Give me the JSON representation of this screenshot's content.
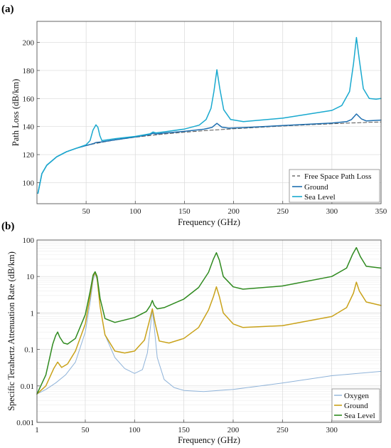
{
  "chart_data": [
    {
      "panel_label": "(a)",
      "type": "line",
      "xlabel": "Frequency (GHz)",
      "ylabel": "Path Loss (dB/km)",
      "xlim": [
        0,
        350
      ],
      "ylim": [
        85,
        215
      ],
      "x_scale": "linear",
      "y_scale": "linear",
      "xticks": [
        50,
        100,
        150,
        200,
        250,
        300,
        350
      ],
      "xtick_labels": [
        "50",
        "100",
        "150",
        "200",
        "250",
        "300",
        "350"
      ],
      "yticks": [
        100,
        120,
        140,
        160,
        180,
        200
      ],
      "ytick_labels": [
        "100",
        "120",
        "140",
        "160",
        "180",
        "200"
      ],
      "grid": true,
      "legend_position": "bottom-right",
      "series": [
        {
          "name": "Free Space Path Loss",
          "color": "#555555",
          "style": "dashed",
          "x": [
            1,
            5,
            10,
            20,
            30,
            40,
            50,
            60,
            80,
            100,
            125,
            150,
            175,
            200,
            225,
            250,
            275,
            300,
            325,
            350
          ],
          "y": [
            92.4,
            106.4,
            112.4,
            118.4,
            122.0,
            124.5,
            126.4,
            128.0,
            130.5,
            132.4,
            134.4,
            136.0,
            137.3,
            138.4,
            139.4,
            140.4,
            141.2,
            142.0,
            142.7,
            143.3
          ]
        },
        {
          "name": "Ground",
          "color": "#1f6fb0",
          "style": "solid",
          "x": [
            1,
            5,
            10,
            20,
            30,
            40,
            50,
            55,
            58,
            60,
            62,
            65,
            70,
            80,
            100,
            115,
            118,
            121,
            130,
            150,
            170,
            178,
            183,
            188,
            195,
            210,
            250,
            300,
            315,
            320,
            325,
            330,
            335,
            350
          ],
          "y": [
            92.4,
            106.4,
            112.4,
            118.4,
            122.0,
            124.5,
            126.5,
            127.4,
            128.0,
            128.6,
            128.8,
            129.0,
            129.5,
            130.6,
            132.6,
            134.3,
            135.2,
            134.7,
            135.4,
            136.6,
            138.1,
            139.4,
            142.3,
            139.6,
            138.9,
            139.3,
            140.7,
            142.5,
            143.5,
            145.0,
            149.0,
            145.5,
            144.0,
            144.6
          ]
        },
        {
          "name": "Sea Level",
          "color": "#19a9cf",
          "style": "solid",
          "x": [
            1,
            5,
            10,
            20,
            30,
            40,
            50,
            54,
            57,
            60,
            62,
            64,
            66,
            70,
            80,
            100,
            115,
            118,
            121,
            130,
            150,
            165,
            172,
            177,
            180,
            183,
            186,
            190,
            197,
            210,
            250,
            300,
            310,
            318,
            322,
            325,
            328,
            332,
            338,
            345,
            350
          ],
          "y": [
            92.4,
            106.4,
            112.4,
            118.4,
            122.0,
            124.5,
            127.0,
            130.0,
            137.5,
            141.2,
            139.5,
            133.5,
            130.0,
            130.4,
            131.4,
            133.0,
            134.8,
            136.1,
            135.5,
            136.3,
            138.2,
            141.0,
            145.0,
            153.0,
            165.0,
            180.5,
            167.0,
            152.0,
            145.0,
            143.5,
            146.0,
            151.5,
            155.0,
            165.0,
            185.0,
            203.5,
            187.0,
            167.0,
            160.0,
            159.5,
            160.0
          ]
        }
      ]
    },
    {
      "panel_label": "(b)",
      "type": "line",
      "xlabel": "Frequency (GHz)",
      "ylabel": "Specific Terahertz Attenuation Rate (dB/km)",
      "xlim": [
        1,
        350
      ],
      "ylim": [
        0.001,
        100
      ],
      "x_scale": "linear",
      "y_scale": "log",
      "xticks": [
        1,
        50,
        100,
        150,
        200,
        250,
        300
      ],
      "xtick_labels": [
        "1",
        "50",
        "100",
        "150",
        "200",
        "250",
        "300"
      ],
      "yticks": [
        0.001,
        0.01,
        0.1,
        1,
        10,
        100
      ],
      "ytick_labels": [
        "0.001",
        "0.01",
        "0.1",
        "1",
        "10",
        "100"
      ],
      "grid": true,
      "legend_position": "bottom-right",
      "series": [
        {
          "name": "Oxygen",
          "color": "#8fb3d9",
          "style": "solid",
          "x": [
            1,
            10,
            20,
            30,
            40,
            50,
            55,
            58,
            60,
            62,
            65,
            70,
            80,
            90,
            100,
            108,
            113,
            116,
            118,
            120,
            123,
            130,
            140,
            150,
            170,
            200,
            250,
            300,
            350
          ],
          "y": [
            0.006,
            0.008,
            0.012,
            0.02,
            0.045,
            0.3,
            2.0,
            8.0,
            12.0,
            8.0,
            1.5,
            0.25,
            0.06,
            0.03,
            0.022,
            0.028,
            0.08,
            0.4,
            1.2,
            0.4,
            0.06,
            0.015,
            0.009,
            0.0075,
            0.007,
            0.008,
            0.012,
            0.019,
            0.025
          ]
        },
        {
          "name": "Ground",
          "color": "#c9a21a",
          "style": "solid",
          "x": [
            1,
            10,
            18,
            22,
            26,
            32,
            40,
            50,
            55,
            58,
            60,
            62,
            65,
            70,
            80,
            90,
            100,
            110,
            115,
            118,
            121,
            125,
            135,
            150,
            165,
            175,
            180,
            183,
            186,
            190,
            200,
            210,
            250,
            300,
            315,
            322,
            325,
            328,
            335,
            350
          ],
          "y": [
            0.006,
            0.01,
            0.03,
            0.045,
            0.032,
            0.04,
            0.09,
            0.5,
            3.0,
            10.0,
            13.0,
            9.0,
            1.5,
            0.25,
            0.09,
            0.08,
            0.09,
            0.18,
            0.6,
            1.3,
            0.5,
            0.17,
            0.15,
            0.2,
            0.4,
            1.2,
            2.8,
            5.2,
            2.8,
            1.0,
            0.5,
            0.4,
            0.45,
            0.8,
            1.4,
            3.5,
            7.0,
            4.0,
            2.0,
            1.6
          ]
        },
        {
          "name": "Sea Level",
          "color": "#2f8a1f",
          "style": "solid",
          "x": [
            1,
            10,
            17,
            20,
            22,
            24,
            28,
            32,
            40,
            50,
            55,
            58,
            60,
            62,
            65,
            70,
            80,
            100,
            112,
            116,
            118,
            120,
            123,
            130,
            150,
            165,
            175,
            180,
            183,
            186,
            190,
            200,
            210,
            250,
            300,
            315,
            321,
            325,
            329,
            335,
            350
          ],
          "y": [
            0.006,
            0.02,
            0.14,
            0.24,
            0.3,
            0.22,
            0.15,
            0.14,
            0.2,
            0.9,
            4.0,
            11.0,
            13.5,
            10.0,
            2.5,
            0.7,
            0.55,
            0.75,
            1.1,
            1.6,
            2.2,
            1.6,
            1.3,
            1.4,
            2.4,
            5.0,
            13.0,
            30.0,
            45.0,
            28.0,
            10.0,
            5.2,
            4.5,
            5.5,
            10.0,
            17.0,
            40.0,
            62.0,
            35.0,
            19.0,
            17.0
          ]
        }
      ]
    }
  ]
}
